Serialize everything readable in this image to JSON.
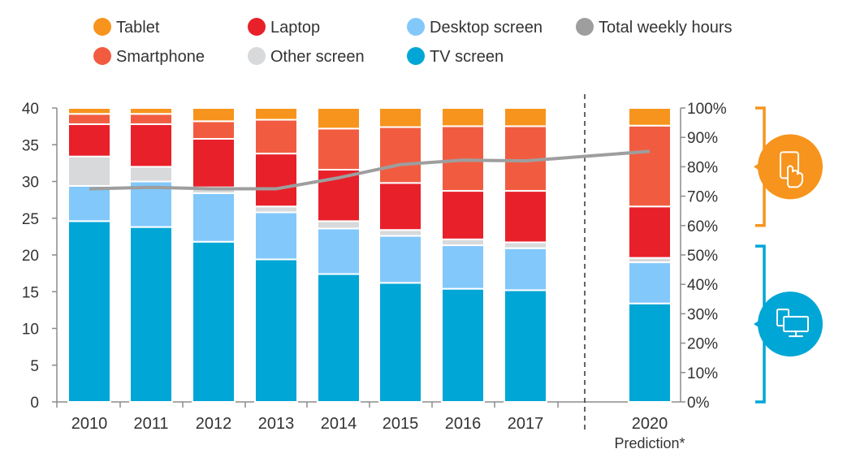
{
  "chart_data": {
    "type": "bar",
    "stacked": true,
    "categories": [
      "2010",
      "2011",
      "2012",
      "2013",
      "2014",
      "2015",
      "2016",
      "2017",
      "2020"
    ],
    "category_sublabels": [
      "",
      "",
      "",
      "",
      "",
      "",
      "",
      "",
      "Prediction*"
    ],
    "y_left": {
      "ticks": [
        0,
        5,
        10,
        15,
        20,
        25,
        30,
        35,
        40
      ],
      "ylim": [
        0,
        40
      ]
    },
    "y_right": {
      "ticks": [
        "0%",
        "10%",
        "20%",
        "30%",
        "40%",
        "50%",
        "60%",
        "70%",
        "80%",
        "90%",
        "100%"
      ],
      "ylim": [
        0,
        1
      ]
    },
    "series": [
      {
        "name": "TV screen",
        "color": "#00a6d6",
        "values": [
          0.615,
          0.595,
          0.545,
          0.485,
          0.435,
          0.405,
          0.385,
          0.38,
          0.335
        ]
      },
      {
        "name": "Desktop screen",
        "color": "#82c8fb",
        "values": [
          0.12,
          0.155,
          0.165,
          0.16,
          0.155,
          0.16,
          0.148,
          0.143,
          0.14
        ]
      },
      {
        "name": "Other screen",
        "color": "#d8d9db",
        "values": [
          0.1,
          0.05,
          0.02,
          0.02,
          0.025,
          0.02,
          0.02,
          0.02,
          0.015
        ]
      },
      {
        "name": "Laptop",
        "color": "#e8202a",
        "values": [
          0.11,
          0.145,
          0.165,
          0.18,
          0.175,
          0.16,
          0.165,
          0.175,
          0.175
        ]
      },
      {
        "name": "Smartphone",
        "color": "#f15c41",
        "values": [
          0.035,
          0.035,
          0.06,
          0.115,
          0.14,
          0.19,
          0.22,
          0.22,
          0.275
        ]
      },
      {
        "name": "Tablet",
        "color": "#f7941d",
        "values": [
          0.02,
          0.02,
          0.045,
          0.04,
          0.07,
          0.065,
          0.062,
          0.062,
          0.06
        ]
      }
    ],
    "line_series": {
      "name": "Total weekly hours",
      "color": "#9e9e9e",
      "axis": "left",
      "x": [
        "2010",
        "2011",
        "2012",
        "2013",
        "2014",
        "2015",
        "2016",
        "2017",
        "2020"
      ],
      "values": [
        29.0,
        29.2,
        29.0,
        29.0,
        30.5,
        32.3,
        32.9,
        32.8,
        34.1
      ]
    },
    "legend": {
      "placement": "top",
      "items": [
        {
          "label": "Tablet",
          "color": "#f7941d"
        },
        {
          "label": "Laptop",
          "color": "#e8202a"
        },
        {
          "label": "Desktop screen",
          "color": "#82c8fb"
        },
        {
          "label": "Total weekly hours",
          "color": "#9e9e9e"
        },
        {
          "label": "Smartphone",
          "color": "#f15c41"
        },
        {
          "label": "Other screen",
          "color": "#d8d9db"
        },
        {
          "label": "TV screen",
          "color": "#00a6d6"
        }
      ]
    },
    "divider_before": "2020",
    "brackets": [
      {
        "name": "mobile-devices",
        "range": [
          0.6,
          1.0
        ],
        "color": "#f7941d",
        "icon": "tablet-touch-icon"
      },
      {
        "name": "fixed-screens",
        "range": [
          0.0,
          0.53
        ],
        "color": "#00a6d6",
        "icon": "desktop-screens-icon"
      }
    ],
    "grid": false
  }
}
